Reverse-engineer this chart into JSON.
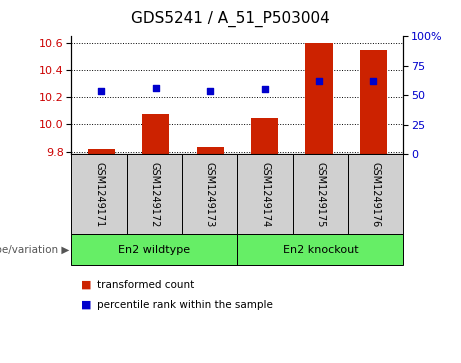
{
  "title": "GDS5241 / A_51_P503004",
  "categories": [
    "GSM1249171",
    "GSM1249172",
    "GSM1249173",
    "GSM1249174",
    "GSM1249175",
    "GSM1249176"
  ],
  "red_values": [
    9.82,
    10.08,
    9.83,
    10.05,
    10.6,
    10.55
  ],
  "blue_percentiles": [
    54,
    56,
    54,
    55,
    62,
    62
  ],
  "ylim_left": [
    9.78,
    10.65
  ],
  "yticks_left": [
    9.8,
    10.0,
    10.2,
    10.4,
    10.6
  ],
  "yticks_right": [
    0,
    25,
    50,
    75,
    100
  ],
  "group1_label": "En2 wildtype",
  "group2_label": "En2 knockout",
  "group1_indices": [
    0,
    1,
    2
  ],
  "group2_indices": [
    3,
    4,
    5
  ],
  "genotype_label": "genotype/variation",
  "legend_red": "transformed count",
  "legend_blue": "percentile rank within the sample",
  "bar_color": "#cc2200",
  "dot_color": "#0000cc",
  "group_color": "#66ee66",
  "sample_box_color": "#d0d0d0",
  "grid_color": "#000000",
  "left_axis_color": "#cc0000",
  "right_axis_color": "#0000cc",
  "title_fontsize": 11,
  "tick_fontsize": 8,
  "bar_width": 0.5,
  "bar_bottom": 9.78
}
